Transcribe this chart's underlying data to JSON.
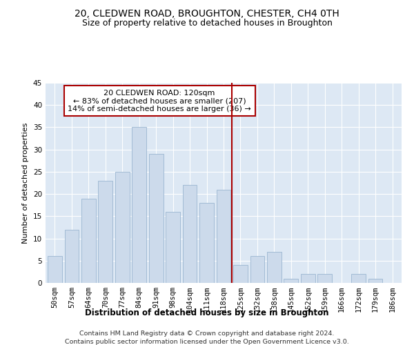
{
  "title": "20, CLEDWEN ROAD, BROUGHTON, CHESTER, CH4 0TH",
  "subtitle": "Size of property relative to detached houses in Broughton",
  "xlabel": "Distribution of detached houses by size in Broughton",
  "ylabel": "Number of detached properties",
  "categories": [
    "50sqm",
    "57sqm",
    "64sqm",
    "70sqm",
    "77sqm",
    "84sqm",
    "91sqm",
    "98sqm",
    "104sqm",
    "111sqm",
    "118sqm",
    "125sqm",
    "132sqm",
    "138sqm",
    "145sqm",
    "152sqm",
    "159sqm",
    "166sqm",
    "172sqm",
    "179sqm",
    "186sqm"
  ],
  "values": [
    6,
    12,
    19,
    23,
    25,
    35,
    29,
    16,
    22,
    18,
    21,
    4,
    6,
    7,
    1,
    2,
    2,
    0,
    2,
    1,
    0
  ],
  "bar_color": "#ccdaeb",
  "bar_edge_color": "#9ab5d0",
  "subject_line_color": "#aa0000",
  "annotation_text": "20 CLEDWEN ROAD: 120sqm\n← 83% of detached houses are smaller (207)\n14% of semi-detached houses are larger (36) →",
  "annotation_box_color": "#aa0000",
  "ylim": [
    0,
    45
  ],
  "yticks": [
    0,
    5,
    10,
    15,
    20,
    25,
    30,
    35,
    40,
    45
  ],
  "background_color": "#dde8f4",
  "footer_line1": "Contains HM Land Registry data © Crown copyright and database right 2024.",
  "footer_line2": "Contains public sector information licensed under the Open Government Licence v3.0.",
  "title_fontsize": 10,
  "subtitle_fontsize": 9,
  "xlabel_fontsize": 8.5,
  "ylabel_fontsize": 8,
  "tick_fontsize": 7.5,
  "footer_fontsize": 6.8
}
